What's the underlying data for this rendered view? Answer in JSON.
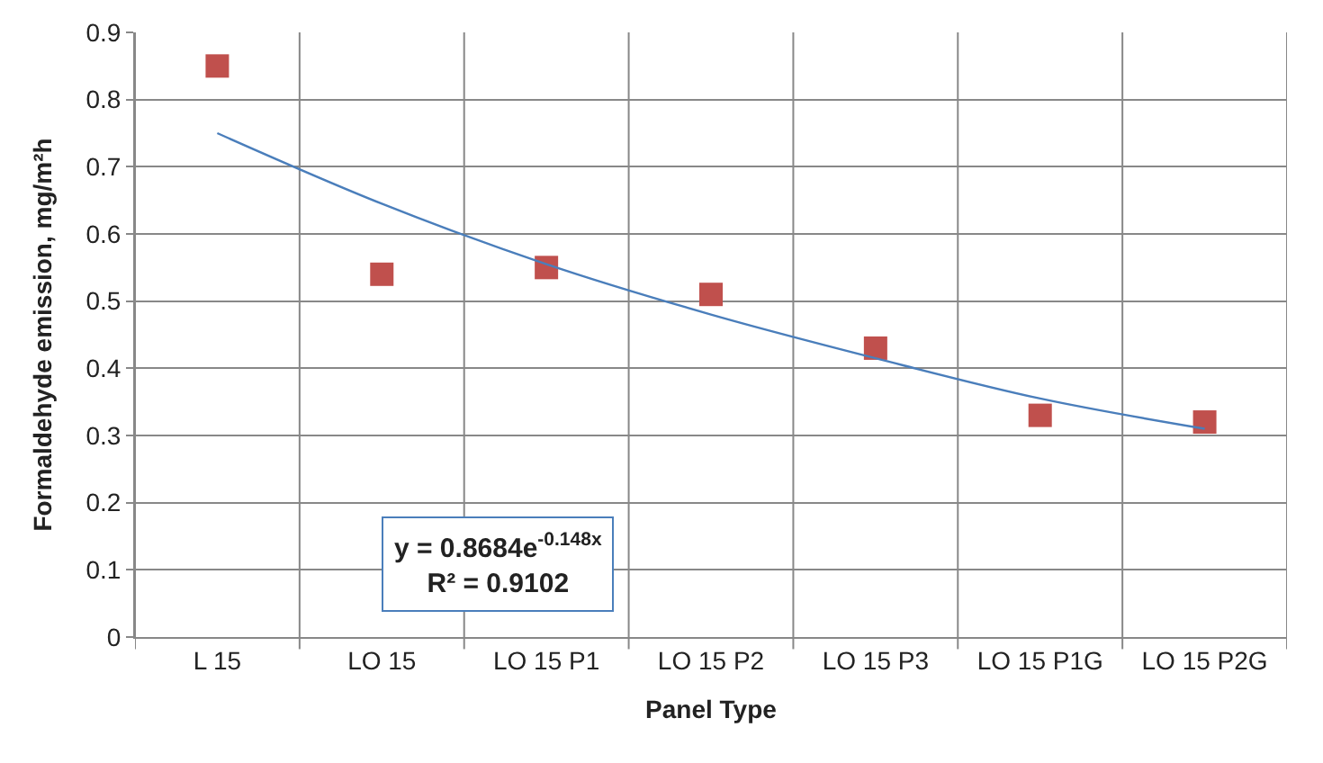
{
  "chart_data": {
    "type": "scatter",
    "xlabel": "Panel Type",
    "ylabel": "Formaldehyde emission, mg/m²h",
    "categories": [
      "L 15",
      "LO 15",
      "LO 15 P1",
      "LO 15 P2",
      "LO 15 P3",
      "LO 15 P1G",
      "LO 15 P2G"
    ],
    "series": [
      {
        "color": "#c0504d",
        "marker": "square",
        "values": [
          0.85,
          0.54,
          0.55,
          0.51,
          0.43,
          0.33,
          0.32
        ]
      },
      {
        "type": "line",
        "color": "#4a7ebb",
        "line_style": "solid",
        "values": [
          0.75,
          0.645,
          0.555,
          0.48,
          0.415,
          0.355,
          0.31
        ]
      }
    ],
    "ylim": [
      0,
      0.9
    ],
    "yticks": [
      0,
      0.1,
      0.2,
      0.3,
      0.4,
      0.5,
      0.6,
      0.7,
      0.8,
      0.9
    ],
    "grid": true,
    "legend": false,
    "annotations": [
      "y = 0.8684e$^{-0.148x}$",
      "R² = 0.9102"
    ]
  }
}
